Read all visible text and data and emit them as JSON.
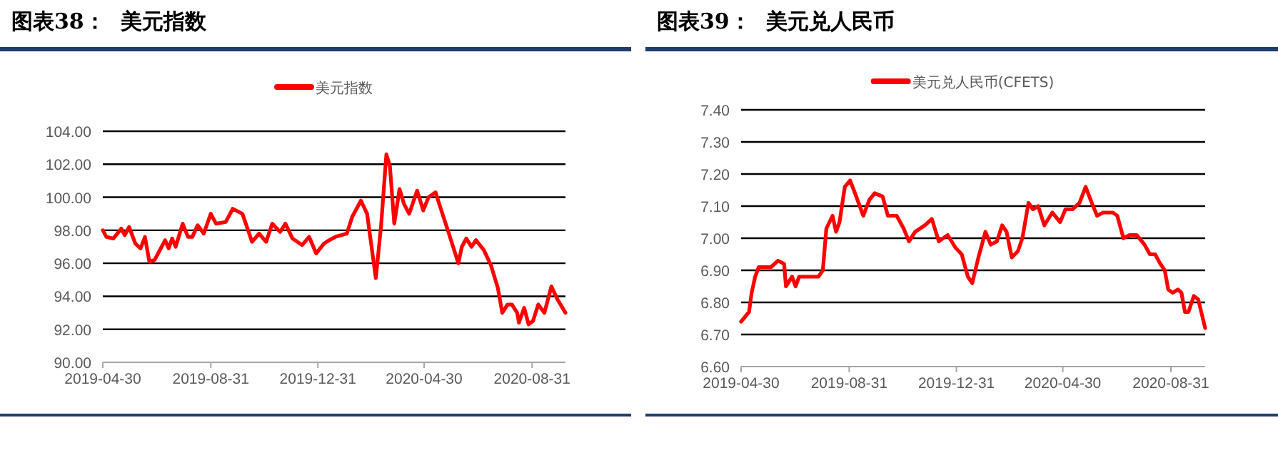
{
  "chart_data": [
    {
      "type": "line",
      "title": "图表38：  美元指数",
      "legend": "top",
      "grid": "y",
      "marker": "none",
      "line_style": "solid",
      "xlim": [
        "2019-04-30",
        "2020-10-08"
      ],
      "xticks": [
        "2019-04-30",
        "2019-08-31",
        "2019-12-31",
        "2020-04-30",
        "2020-08-31"
      ],
      "ylim": [
        90,
        104
      ],
      "yticks": [
        {
          "value": 90,
          "label": "90.00"
        },
        {
          "value": 92,
          "label": "92.00"
        },
        {
          "value": 94,
          "label": "94.00"
        },
        {
          "value": 96,
          "label": "96.00"
        },
        {
          "value": 98,
          "label": "98.00"
        },
        {
          "value": 100,
          "label": "100.00"
        },
        {
          "value": 102,
          "label": "102.00"
        },
        {
          "value": 104,
          "label": "104.00"
        }
      ],
      "series": [
        {
          "name": "美元指数",
          "color": "#ff0000",
          "x": [
            "2019-04-30",
            "2019-05-04",
            "2019-05-12",
            "2019-05-21",
            "2019-05-25",
            "2019-05-30",
            "2019-06-06",
            "2019-06-12",
            "2019-06-17",
            "2019-06-22",
            "2019-06-28",
            "2019-07-06",
            "2019-07-10",
            "2019-07-14",
            "2019-07-18",
            "2019-07-22",
            "2019-07-30",
            "2019-08-05",
            "2019-08-10",
            "2019-08-16",
            "2019-08-23",
            "2019-08-31",
            "2019-09-06",
            "2019-09-17",
            "2019-09-25",
            "2019-10-06",
            "2019-10-17",
            "2019-10-25",
            "2019-11-02",
            "2019-11-09",
            "2019-11-18",
            "2019-11-24",
            "2019-12-02",
            "2019-12-13",
            "2019-12-21",
            "2019-12-29",
            "2020-01-07",
            "2020-01-13",
            "2020-01-20",
            "2020-02-02",
            "2020-02-08",
            "2020-02-18",
            "2020-02-25",
            "2020-03-06",
            "2020-03-12",
            "2020-03-18",
            "2020-03-22",
            "2020-03-27",
            "2020-04-02",
            "2020-04-07",
            "2020-04-13",
            "2020-04-22",
            "2020-04-29",
            "2020-05-05",
            "2020-05-13",
            "2020-05-19",
            "2020-05-27",
            "2020-06-02",
            "2020-06-08",
            "2020-06-12",
            "2020-06-17",
            "2020-06-23",
            "2020-06-28",
            "2020-07-07",
            "2020-07-15",
            "2020-07-23",
            "2020-07-28",
            "2020-08-03",
            "2020-08-08",
            "2020-08-14",
            "2020-08-16",
            "2020-08-22",
            "2020-08-27",
            "2020-09-01",
            "2020-09-07",
            "2020-09-14",
            "2020-09-22",
            "2020-09-29",
            "2020-10-08"
          ],
          "values": [
            98.0,
            97.6,
            97.5,
            98.1,
            97.7,
            98.2,
            97.2,
            96.9,
            97.6,
            96.1,
            96.2,
            97.0,
            97.4,
            96.9,
            97.5,
            97.0,
            98.4,
            97.6,
            97.6,
            98.3,
            97.8,
            99.0,
            98.4,
            98.5,
            99.3,
            99.0,
            97.3,
            97.8,
            97.3,
            98.4,
            97.9,
            98.4,
            97.5,
            97.1,
            97.6,
            96.6,
            97.2,
            97.4,
            97.6,
            97.8,
            98.8,
            99.8,
            99.0,
            95.1,
            98.3,
            102.6,
            101.9,
            98.4,
            100.5,
            99.6,
            99.0,
            100.4,
            99.2,
            100.0,
            100.3,
            99.3,
            98.0,
            97.0,
            96.0,
            97.0,
            97.5,
            97.0,
            97.4,
            96.8,
            95.9,
            94.5,
            93.0,
            93.5,
            93.5,
            93.0,
            92.4,
            93.3,
            92.3,
            92.5,
            93.5,
            93.0,
            94.6,
            93.8,
            93.0
          ]
        }
      ]
    },
    {
      "type": "line",
      "title": "图表39：  美元兑人民币",
      "legend": "top",
      "grid": "y",
      "marker": "none",
      "line_style": "solid",
      "xlim": [
        "2019-04-30",
        "2020-10-09"
      ],
      "xticks": [
        "2019-04-30",
        "2019-08-31",
        "2019-12-31",
        "2020-04-30",
        "2020-08-31"
      ],
      "ylim": [
        6.6,
        7.4
      ],
      "yticks": [
        {
          "value": 6.6,
          "label": "6.60"
        },
        {
          "value": 6.7,
          "label": "6.70"
        },
        {
          "value": 6.8,
          "label": "6.80"
        },
        {
          "value": 6.9,
          "label": "6.90"
        },
        {
          "value": 7.0,
          "label": "7.00"
        },
        {
          "value": 7.1,
          "label": "7.10"
        },
        {
          "value": 7.2,
          "label": "7.20"
        },
        {
          "value": 7.3,
          "label": "7.30"
        },
        {
          "value": 7.4,
          "label": "7.40"
        }
      ],
      "series": [
        {
          "name": "美元兑人民币(CFETS)",
          "color": "#ff0000",
          "x": [
            "2019-04-30",
            "2019-05-09",
            "2019-05-12",
            "2019-05-16",
            "2019-05-20",
            "2019-05-28",
            "2019-06-03",
            "2019-06-11",
            "2019-06-18",
            "2019-06-20",
            "2019-06-27",
            "2019-07-01",
            "2019-07-05",
            "2019-07-16",
            "2019-07-27",
            "2019-08-01",
            "2019-08-05",
            "2019-08-12",
            "2019-08-16",
            "2019-08-20",
            "2019-08-26",
            "2019-09-01",
            "2019-09-08",
            "2019-09-16",
            "2019-09-23",
            "2019-09-29",
            "2019-10-08",
            "2019-10-14",
            "2019-10-24",
            "2019-11-01",
            "2019-11-07",
            "2019-11-14",
            "2019-11-25",
            "2019-12-03",
            "2019-12-11",
            "2019-12-21",
            "2019-12-30",
            "2020-01-06",
            "2020-01-13",
            "2020-01-18",
            "2020-01-25",
            "2020-02-02",
            "2020-02-08",
            "2020-02-15",
            "2020-02-21",
            "2020-02-26",
            "2020-03-03",
            "2020-03-10",
            "2020-03-15",
            "2020-03-22",
            "2020-03-27",
            "2020-04-02",
            "2020-04-09",
            "2020-04-18",
            "2020-04-27",
            "2020-05-03",
            "2020-05-11",
            "2020-05-19",
            "2020-05-26",
            "2020-06-02",
            "2020-06-08",
            "2020-06-15",
            "2020-06-26",
            "2020-07-01",
            "2020-07-08",
            "2020-07-15",
            "2020-07-23",
            "2020-08-01",
            "2020-08-07",
            "2020-08-13",
            "2020-08-19",
            "2020-08-24",
            "2020-08-28",
            "2020-09-02",
            "2020-09-08",
            "2020-09-12",
            "2020-09-16",
            "2020-09-20",
            "2020-09-26",
            "2020-10-01",
            "2020-10-09"
          ],
          "values": [
            6.74,
            6.77,
            6.83,
            6.88,
            6.91,
            6.91,
            6.91,
            6.93,
            6.92,
            6.85,
            6.88,
            6.85,
            6.88,
            6.88,
            6.88,
            6.9,
            7.03,
            7.07,
            7.02,
            7.05,
            7.16,
            7.18,
            7.13,
            7.07,
            7.12,
            7.14,
            7.13,
            7.07,
            7.07,
            7.03,
            6.99,
            7.02,
            7.04,
            7.06,
            6.99,
            7.01,
            6.97,
            6.95,
            6.88,
            6.86,
            6.94,
            7.02,
            6.98,
            6.99,
            7.04,
            7.02,
            6.94,
            6.96,
            7.0,
            7.11,
            7.09,
            7.1,
            7.04,
            7.08,
            7.05,
            7.09,
            7.09,
            7.11,
            7.16,
            7.11,
            7.07,
            7.08,
            7.08,
            7.07,
            7.0,
            7.01,
            7.01,
            6.98,
            6.95,
            6.95,
            6.92,
            6.9,
            6.84,
            6.83,
            6.84,
            6.83,
            6.77,
            6.77,
            6.82,
            6.81,
            6.72
          ]
        }
      ]
    }
  ]
}
